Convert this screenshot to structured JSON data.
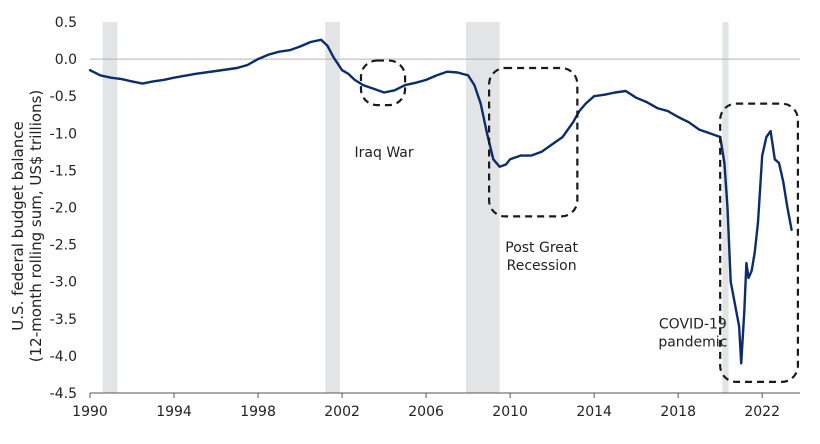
{
  "chart_data": {
    "type": "line",
    "ylabel_line1": "U.S. federal budget balance",
    "ylabel_line2": "(12-month rolling sum, US$ trillions)",
    "xlim": [
      1990,
      2023.8
    ],
    "ylim": [
      -4.5,
      0.5
    ],
    "x_ticks": [
      1990,
      1994,
      1998,
      2002,
      2006,
      2010,
      2014,
      2018,
      2022
    ],
    "y_ticks": [
      0.5,
      0.0,
      -0.5,
      -1.0,
      -1.5,
      -2.0,
      -2.5,
      -3.0,
      -3.5,
      -4.0,
      -4.5
    ],
    "y_tick_labels": [
      "0.5",
      "0.0",
      "-0.5",
      "-1.0",
      "-1.5",
      "-2.0",
      "-2.5",
      "-3.0",
      "-3.5",
      "-4.0",
      "-4.5"
    ],
    "recessions": [
      {
        "start": 1990.6,
        "end": 1991.3
      },
      {
        "start": 2001.2,
        "end": 2001.9
      },
      {
        "start": 2007.9,
        "end": 2009.5
      },
      {
        "start": 2020.1,
        "end": 2020.4
      }
    ],
    "annotations": [
      {
        "label_lines": [
          "Iraq War"
        ],
        "x0": 2002.9,
        "x1": 2005.0,
        "y0": -0.02,
        "y1": -0.62,
        "label_x": 2004.0,
        "label_y": -1.32
      },
      {
        "label_lines": [
          "Post Great",
          "Recession"
        ],
        "x0": 2009.0,
        "x1": 2013.2,
        "y0": -0.12,
        "y1": -2.12,
        "label_x": 2011.5,
        "label_y": -2.6
      },
      {
        "label_lines": [
          "COVID-19",
          "pandemic"
        ],
        "x0": 2020.0,
        "x1": 2023.7,
        "y0": -0.6,
        "y1": -4.35,
        "label_x": 2018.7,
        "label_y": -3.63
      }
    ],
    "series": [
      {
        "name": "U.S. federal budget balance",
        "color": "#0b2d6b",
        "x": [
          1990.0,
          1990.5,
          1991.0,
          1991.5,
          1992.0,
          1992.5,
          1993.0,
          1993.5,
          1994.0,
          1995.0,
          1996.0,
          1997.0,
          1997.5,
          1998.0,
          1998.5,
          1999.0,
          1999.5,
          2000.0,
          2000.5,
          2001.0,
          2001.3,
          2001.6,
          2002.0,
          2002.3,
          2002.6,
          2003.0,
          2003.5,
          2004.0,
          2004.5,
          2005.0,
          2005.5,
          2006.0,
          2006.5,
          2007.0,
          2007.5,
          2008.0,
          2008.3,
          2008.6,
          2008.9,
          2009.2,
          2009.5,
          2009.8,
          2010.0,
          2010.5,
          2011.0,
          2011.5,
          2012.0,
          2012.5,
          2013.0,
          2013.3,
          2013.6,
          2014.0,
          2014.5,
          2015.0,
          2015.5,
          2016.0,
          2016.5,
          2017.0,
          2017.5,
          2018.0,
          2018.5,
          2019.0,
          2019.5,
          2020.0,
          2020.2,
          2020.35,
          2020.5,
          2020.7,
          2020.9,
          2021.0,
          2021.15,
          2021.25,
          2021.35,
          2021.5,
          2021.65,
          2021.8,
          2022.0,
          2022.2,
          2022.4,
          2022.6,
          2022.8,
          2023.0,
          2023.2,
          2023.4
        ],
        "y": [
          -0.15,
          -0.22,
          -0.25,
          -0.27,
          -0.3,
          -0.33,
          -0.3,
          -0.28,
          -0.25,
          -0.2,
          -0.16,
          -0.12,
          -0.08,
          0.0,
          0.06,
          0.1,
          0.12,
          0.17,
          0.23,
          0.26,
          0.18,
          0.02,
          -0.15,
          -0.2,
          -0.28,
          -0.35,
          -0.4,
          -0.45,
          -0.42,
          -0.35,
          -0.32,
          -0.28,
          -0.22,
          -0.17,
          -0.18,
          -0.22,
          -0.35,
          -0.6,
          -1.0,
          -1.35,
          -1.45,
          -1.42,
          -1.35,
          -1.3,
          -1.3,
          -1.25,
          -1.15,
          -1.05,
          -0.85,
          -0.7,
          -0.6,
          -0.5,
          -0.48,
          -0.45,
          -0.43,
          -0.52,
          -0.58,
          -0.66,
          -0.7,
          -0.78,
          -0.85,
          -0.95,
          -1.0,
          -1.05,
          -1.4,
          -2.0,
          -3.0,
          -3.3,
          -3.6,
          -4.1,
          -3.4,
          -2.75,
          -2.95,
          -2.85,
          -2.6,
          -2.2,
          -1.3,
          -1.05,
          -0.97,
          -1.35,
          -1.4,
          -1.65,
          -2.0,
          -2.3
        ]
      }
    ]
  }
}
